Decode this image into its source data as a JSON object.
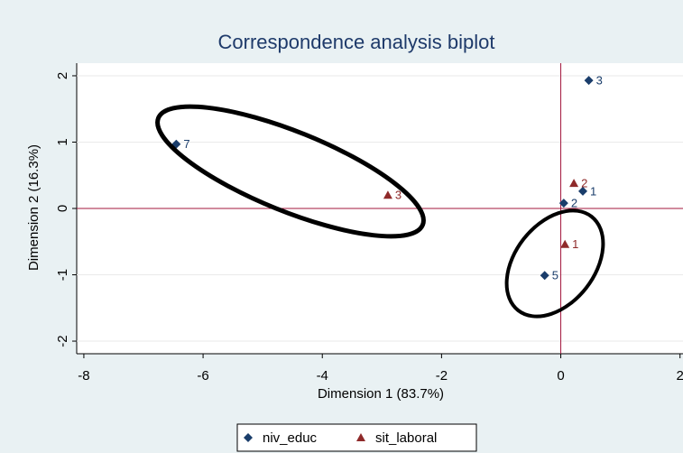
{
  "chart_data": {
    "type": "scatter",
    "title": "Correspondence analysis biplot",
    "x_label": "Dimension 1 (83.7%)",
    "y_label": "Dimension 2 (16.3%)",
    "xlim": [
      -8.12,
      2.05
    ],
    "xticks": [
      -8,
      -6,
      -4,
      -2,
      0,
      2
    ],
    "ylim": [
      -2.19,
      2.19
    ],
    "yticks": [
      -2,
      -1,
      0,
      1,
      2
    ],
    "reference_lines": {
      "x": 0,
      "y": 0,
      "color": "#a3173d"
    },
    "series": [
      {
        "name": "niv_educ",
        "color": "#1a3d6b",
        "marker": "diamond",
        "x": [
          -6.45,
          0.47,
          0.37,
          0.05,
          -0.27
        ],
        "values": [
          0.97,
          1.93,
          0.26,
          0.08,
          -1.01
        ],
        "labels": [
          "7",
          "3",
          "1",
          "2",
          "5"
        ]
      },
      {
        "name": "sit_laboral",
        "color": "#8f2a2a",
        "marker": "triangle",
        "x": [
          -2.9,
          0.22,
          0.07
        ],
        "values": [
          0.2,
          0.38,
          -0.54
        ],
        "labels": [
          "3",
          "2",
          "1"
        ]
      }
    ]
  }
}
